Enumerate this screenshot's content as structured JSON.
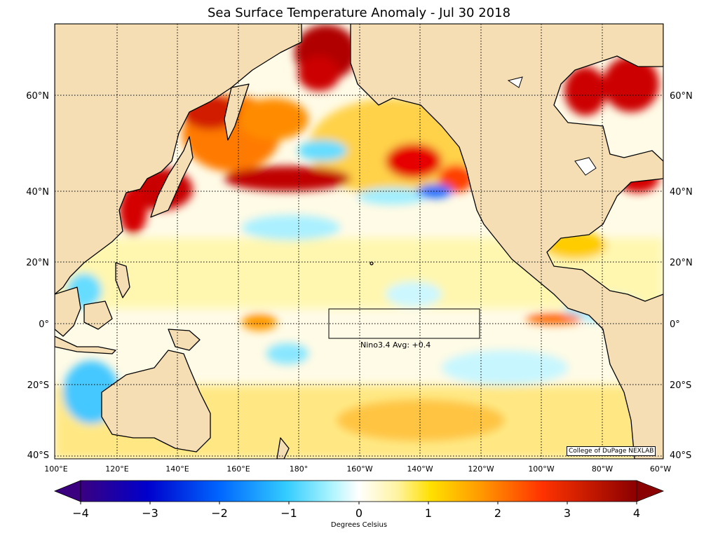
{
  "title": "Sea Surface Temperature Anomaly - Jul 30 2018",
  "lat_labels": [
    "60°N",
    "40°N",
    "20°N",
    "0°",
    "20°S",
    "40°S"
  ],
  "lon_labels": [
    "100°E",
    "120°E",
    "140°E",
    "160°E",
    "180°",
    "160°W",
    "140°W",
    "120°W",
    "100°W",
    "80°W",
    "60°W"
  ],
  "nino_box": {
    "label": "Nino3.4 Avg: +0.4",
    "value": 0.4
  },
  "credit": "College of DuPage NEXLAB",
  "colorbar": {
    "label": "Degrees Celsius",
    "ticks": [
      "−4",
      "−3",
      "−2",
      "−1",
      "0",
      "1",
      "2",
      "3",
      "4"
    ],
    "range": [
      -4,
      4
    ]
  },
  "colors": {
    "land": "#f5deb3",
    "coast": "#000000",
    "grid": "#000000",
    "warm_strong": "#b30000",
    "warm": "#ff6600",
    "warm_light": "#ffe14d",
    "neutral": "#ffffff",
    "cool_light": "#99eeff",
    "cool": "#00aaff"
  }
}
